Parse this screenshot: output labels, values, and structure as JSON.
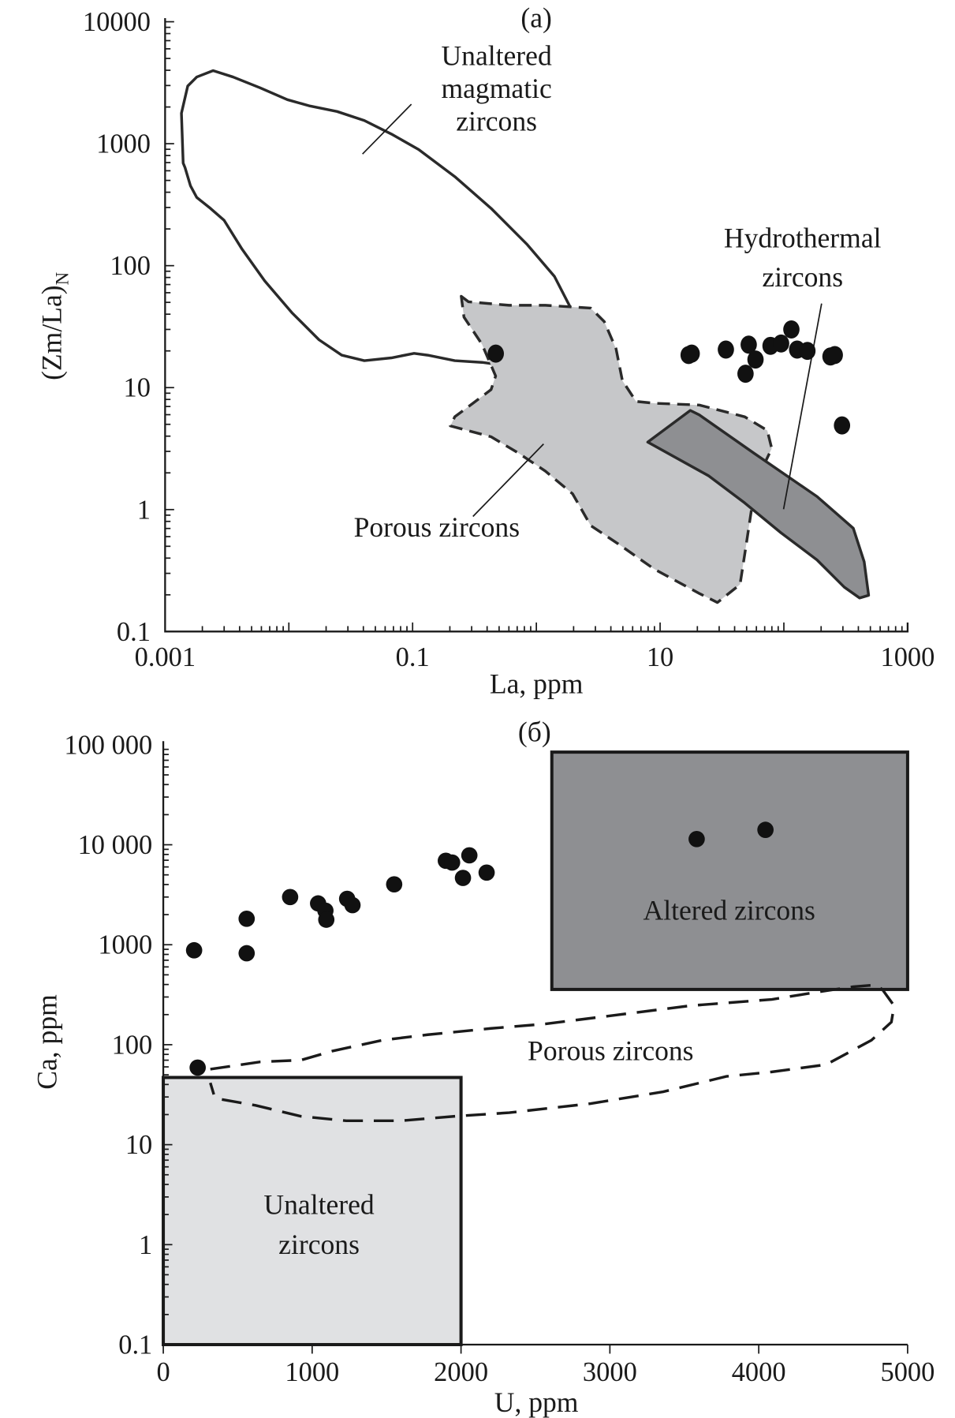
{
  "chart_data": [
    {
      "type": "scatter",
      "panel_label": "(a)",
      "xlabel": "La, ppm",
      "ylabel": "(Zm/La)",
      "ylabel_subscript": "N",
      "xscale": "log",
      "yscale": "log",
      "xlim": [
        0.001,
        1000
      ],
      "ylim": [
        0.1,
        10000
      ],
      "xticks": [
        "0.001",
        "0.1",
        "10",
        "1000"
      ],
      "xtick_values": [
        0.001,
        0.1,
        10,
        1000
      ],
      "yticks": [
        "10000",
        "1000",
        "100",
        "10",
        "1",
        "0.1"
      ],
      "ytick_values": [
        10000,
        1000,
        100,
        10,
        1,
        0.1
      ],
      "points": {
        "x": [
          0.47,
          17,
          18,
          34,
          52,
          59,
          49,
          78,
          95,
          115,
          128,
          155,
          238,
          258,
          295
        ],
        "y": [
          19,
          18.5,
          19,
          20.5,
          22.5,
          17,
          13,
          22,
          23,
          30,
          20.5,
          20,
          18,
          18.5,
          4.9
        ]
      },
      "regions_log10": [
        {
          "name": "Unaltered magmatic zircons",
          "style": "solid-outline",
          "fill": "none",
          "x": [
            -2.868,
            -2.817,
            -2.744,
            -2.612,
            -2.451,
            -2.232,
            -2.012,
            -1.829,
            -1.61,
            -1.39,
            -1.171,
            -0.951,
            -0.659,
            -0.366,
            -0.073,
            0.146,
            0.278,
            0.329,
            0.344,
            0.278,
            0.183,
            -0.073,
            -0.22,
            -0.329,
            -0.439,
            -0.659,
            -0.878,
            -0.988,
            -1.171,
            -1.39,
            -1.573,
            -1.756,
            -1.976,
            -2.195,
            -2.378,
            -2.524,
            -2.634,
            -2.744,
            -2.795,
            -2.839,
            -2.854
          ],
          "y": [
            3.25,
            3.473,
            3.547,
            3.599,
            3.547,
            3.458,
            3.361,
            3.309,
            3.264,
            3.19,
            3.079,
            2.952,
            2.73,
            2.47,
            2.172,
            1.912,
            1.652,
            1.355,
            1.058,
            0.924,
            0.939,
            0.969,
            1.058,
            1.192,
            1.207,
            1.221,
            1.266,
            1.281,
            1.244,
            1.221,
            1.266,
            1.392,
            1.615,
            1.875,
            2.135,
            2.373,
            2.47,
            2.559,
            2.655,
            2.804,
            2.841
          ]
        },
        {
          "name": "Porous zircons",
          "style": "dashed",
          "fill": "#c6c7c9",
          "x": [
            -0.607,
            -0.549,
            -0.22,
            0.073,
            0.439,
            0.549,
            0.644,
            0.695,
            0.805,
            0.951,
            1.317,
            1.683,
            1.866,
            1.902,
            1.815,
            1.741,
            1.697,
            1.646,
            1.463,
            1.317,
            0.951,
            0.658,
            0.439,
            0.293,
            0.073,
            -0.146,
            -0.366,
            -0.695,
            -0.659,
            -0.512,
            -0.366,
            -0.329,
            -0.439,
            -0.585
          ],
          "y": [
            1.749,
            1.704,
            1.675,
            1.675,
            1.652,
            1.541,
            1.318,
            1.058,
            0.887,
            0.872,
            0.857,
            0.761,
            0.649,
            0.501,
            0.315,
            0.018,
            -0.279,
            -0.614,
            -0.762,
            -0.688,
            -0.487,
            -0.279,
            -0.131,
            0.129,
            0.315,
            0.464,
            0.597,
            0.686,
            0.761,
            0.872,
            0.984,
            1.095,
            1.355,
            1.578
          ]
        },
        {
          "name": "Hydrothermal zircons",
          "style": "solid",
          "fill": "#8e8f92",
          "x": [
            0.9,
            1.244,
            1.317,
            1.756,
            2.268,
            2.561,
            2.649,
            2.685,
            2.612,
            2.488,
            2.268,
            1.976,
            1.683,
            1.39
          ],
          "y": [
            0.553,
            0.813,
            0.776,
            0.464,
            0.107,
            -0.153,
            -0.428,
            -0.703,
            -0.725,
            -0.636,
            -0.413,
            -0.19,
            0.055,
            0.278
          ]
        }
      ],
      "annotations": {
        "magmatic": [
          "Unaltered",
          "magmatic",
          "zircons"
        ],
        "hydrothermal": [
          "Hydrothermal",
          "zircons"
        ],
        "porous": "Porous zircons"
      }
    },
    {
      "type": "scatter",
      "panel_label": "(б)",
      "xlabel": "U, ppm",
      "ylabel": "Ca, ppm",
      "xscale": "linear",
      "yscale": "log",
      "xlim": [
        0,
        5000
      ],
      "ylim": [
        0.1,
        100000
      ],
      "xticks": [
        "0",
        "1000",
        "2000",
        "3000",
        "4000",
        "5000"
      ],
      "xtick_values": [
        0,
        1000,
        2000,
        3000,
        4000,
        5000
      ],
      "yticks": [
        "100 000",
        "10 000",
        "1000",
        "100",
        "10",
        "1",
        "0.1"
      ],
      "ytick_values": [
        100000,
        10000,
        1000,
        100,
        10,
        1,
        0.1
      ],
      "points": {
        "x": [
          207,
          560,
          560,
          852,
          1040,
          1089,
          1095,
          1235,
          1271,
          1551,
          1898,
          1940,
          2013,
          2056,
          2172,
          3583,
          4045,
          231
        ],
        "y": [
          880,
          1820,
          822,
          3000,
          2590,
          2190,
          1780,
          2880,
          2490,
          4020,
          6920,
          6640,
          4660,
          7840,
          5270,
          11400,
          14100,
          59
        ]
      },
      "rectangles": [
        {
          "name": "Altered zircons",
          "x": [
            2610,
            5000
          ],
          "y": [
            357,
            84500
          ],
          "fill": "#8e8f92"
        },
        {
          "name": "Unaltered zircons",
          "x": [
            0,
            2000
          ],
          "y": [
            0.1,
            47
          ],
          "fill": "#e0e1e3"
        }
      ],
      "porous_region": {
        "name": "Porous zircons",
        "style": "dashed",
        "x": [
          316,
          651,
          925,
          1137,
          1472,
          1776,
          2202,
          2567,
          3054,
          3540,
          4088,
          4392,
          4635,
          4787,
          4830,
          4909,
          4891,
          4757,
          4453,
          4088,
          3783,
          3358,
          2871,
          2324,
          1959,
          1594,
          1229,
          925,
          620,
          347,
          316
        ],
        "y_log10": [
          1.755,
          1.828,
          1.846,
          1.937,
          2.045,
          2.1,
          2.163,
          2.208,
          2.299,
          2.39,
          2.453,
          2.526,
          2.58,
          2.598,
          2.553,
          2.39,
          2.226,
          2.045,
          1.801,
          1.728,
          1.683,
          1.529,
          1.411,
          1.32,
          1.284,
          1.239,
          1.239,
          1.284,
          1.393,
          1.465,
          1.619
        ]
      },
      "annotations": {
        "altered": "Altered zircons",
        "porous": "Porous zircons",
        "unaltered": [
          "Unaltered",
          "zircons"
        ]
      }
    }
  ]
}
